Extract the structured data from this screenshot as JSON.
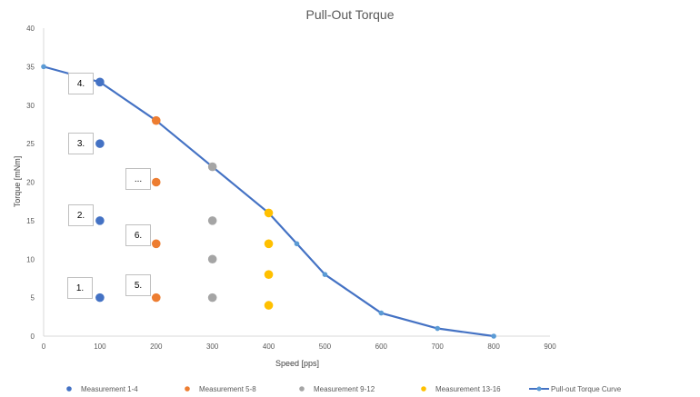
{
  "chart_data": {
    "type": "scatter",
    "title": "Pull-Out Torque",
    "xlabel": "Speed [pps]",
    "ylabel": "Torque [mNm]",
    "xlim": [
      0,
      900
    ],
    "ylim": [
      0,
      40
    ],
    "xticks": [
      "0",
      "100",
      "200",
      "300",
      "400",
      "500",
      "600",
      "700",
      "800",
      "900"
    ],
    "yticks": [
      "0",
      "5",
      "10",
      "15",
      "20",
      "25",
      "30",
      "35",
      "40"
    ],
    "grid": false,
    "legend_position": "bottom",
    "series": [
      {
        "name": "Measurement 1-4",
        "type": "scatter",
        "color": "#4472C4",
        "x": [
          100,
          100,
          100,
          100
        ],
        "y": [
          5,
          15,
          25,
          33
        ]
      },
      {
        "name": "Measurement 5-8",
        "type": "scatter",
        "color": "#ED7D31",
        "x": [
          200,
          200,
          200,
          200
        ],
        "y": [
          5,
          12,
          20,
          28
        ]
      },
      {
        "name": "Measurement 9-12",
        "type": "scatter",
        "color": "#A5A5A5",
        "x": [
          300,
          300,
          300,
          300
        ],
        "y": [
          5,
          10,
          15,
          22
        ]
      },
      {
        "name": "Measurement 13-16",
        "type": "scatter",
        "color": "#FFC000",
        "x": [
          400,
          400,
          400,
          400
        ],
        "y": [
          4,
          8,
          12,
          16
        ]
      },
      {
        "name": "Pull-out Torque Curve",
        "type": "line",
        "color": "#4472C4",
        "marker_color": "#5B9BD5",
        "x": [
          0,
          100,
          200,
          300,
          400,
          450,
          500,
          600,
          700,
          800
        ],
        "y": [
          35,
          33,
          28,
          22,
          16,
          12,
          8,
          3,
          1,
          0
        ]
      }
    ],
    "annotations": [
      "4.",
      "3.",
      "...",
      "2.",
      "6.",
      "1.",
      "5."
    ]
  }
}
